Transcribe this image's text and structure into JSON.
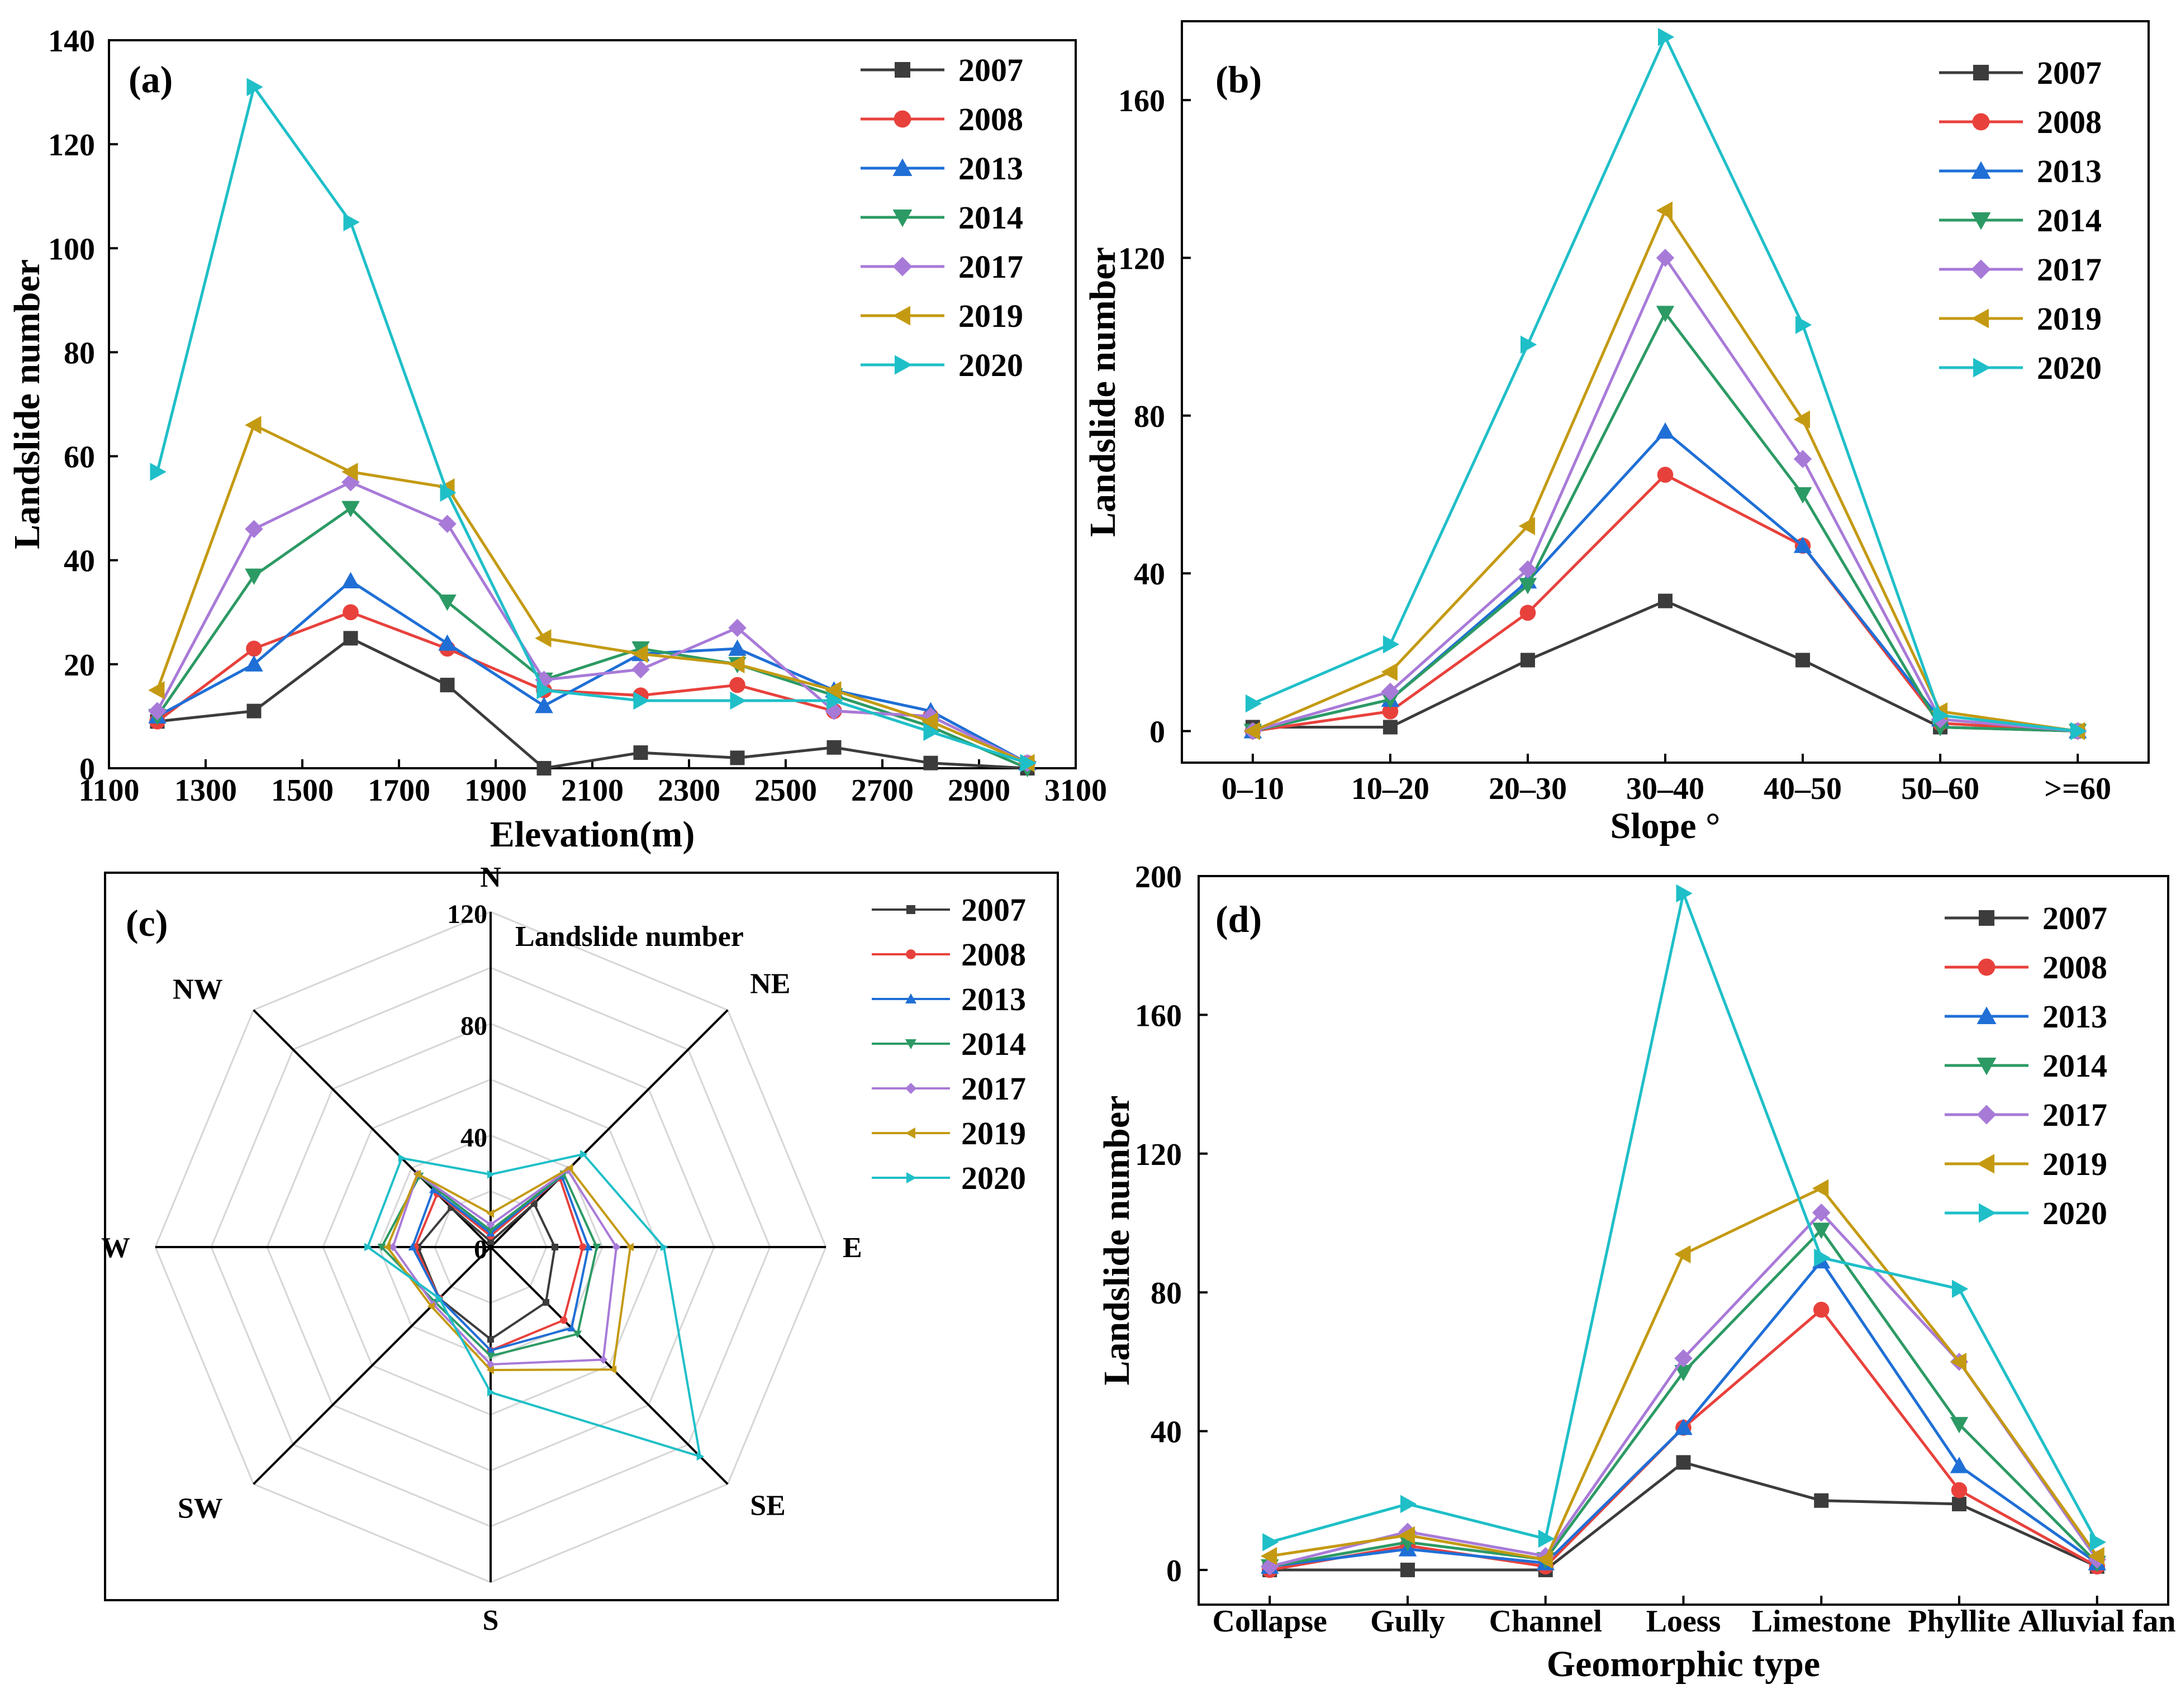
{
  "figure": {
    "series_colors": [
      "#3c3c3c",
      "#e8413c",
      "#1f6fd6",
      "#2c9a64",
      "#a87ad8",
      "#c49a12",
      "#1fbfc8"
    ],
    "series_markers": [
      "square",
      "circle",
      "triangle-up",
      "triangle-down",
      "diamond",
      "triangle-left",
      "triangle-right"
    ]
  },
  "chart_data": [
    {
      "panel_label": "(a)",
      "type": "line",
      "xlabel": "Elevation(m)",
      "ylabel": "Landslide number",
      "x": [
        1200,
        1400,
        1600,
        1800,
        2000,
        2200,
        2400,
        2600,
        2800,
        3000
      ],
      "xlim": [
        1100,
        3100
      ],
      "xticks": [
        1100,
        1300,
        1500,
        1700,
        1900,
        2100,
        2300,
        2500,
        2700,
        2900,
        3100
      ],
      "ylim": [
        0,
        140
      ],
      "yticks": [
        0,
        20,
        40,
        60,
        80,
        100,
        120,
        140
      ],
      "legend_position": "top-right",
      "series": [
        {
          "name": "2007",
          "values": [
            9,
            11,
            25,
            16,
            0,
            3,
            2,
            4,
            1,
            0
          ]
        },
        {
          "name": "2008",
          "values": [
            9,
            23,
            30,
            23,
            15,
            14,
            16,
            11,
            10,
            1
          ]
        },
        {
          "name": "2013",
          "values": [
            10,
            20,
            36,
            24,
            12,
            22,
            23,
            15,
            11,
            1
          ]
        },
        {
          "name": "2014",
          "values": [
            10,
            37,
            50,
            32,
            17,
            23,
            20,
            14,
            8,
            0
          ]
        },
        {
          "name": "2017",
          "values": [
            11,
            46,
            55,
            47,
            17,
            19,
            27,
            11,
            10,
            1
          ]
        },
        {
          "name": "2019",
          "values": [
            15,
            66,
            57,
            54,
            25,
            22,
            20,
            15,
            9,
            1
          ]
        },
        {
          "name": "2020",
          "values": [
            57,
            131,
            105,
            53,
            15,
            13,
            13,
            13,
            7,
            1
          ]
        }
      ]
    },
    {
      "panel_label": "(b)",
      "type": "line",
      "xlabel": "Slope °",
      "ylabel": "Landslide number",
      "categories": [
        "0–10",
        "10–20",
        "20–30",
        "30–40",
        "40–50",
        "50–60",
        ">=60"
      ],
      "ylim": [
        -8,
        180
      ],
      "yticks": [
        0,
        40,
        80,
        120,
        160
      ],
      "legend_position": "top-right",
      "series": [
        {
          "name": "2007",
          "values": [
            1,
            1,
            18,
            33,
            18,
            1,
            0
          ]
        },
        {
          "name": "2008",
          "values": [
            0,
            5,
            30,
            65,
            47,
            2,
            0
          ]
        },
        {
          "name": "2013",
          "values": [
            0,
            8,
            38,
            76,
            47,
            3,
            0
          ]
        },
        {
          "name": "2014",
          "values": [
            0,
            8,
            37,
            106,
            60,
            1,
            0
          ]
        },
        {
          "name": "2017",
          "values": [
            0,
            10,
            41,
            120,
            69,
            3,
            0
          ]
        },
        {
          "name": "2019",
          "values": [
            0,
            15,
            52,
            132,
            79,
            5,
            0
          ]
        },
        {
          "name": "2020",
          "values": [
            7,
            22,
            98,
            176,
            103,
            4,
            0
          ]
        }
      ]
    },
    {
      "panel_label": "(c)",
      "type": "radar",
      "title": "Landslide number",
      "directions": [
        "N",
        "NE",
        "E",
        "SE",
        "S",
        "SW",
        "W",
        "NW"
      ],
      "rlim": [
        0,
        120
      ],
      "rticks": [
        0,
        40,
        80,
        120
      ],
      "legend_position": "top-right",
      "series": [
        {
          "name": "2007",
          "values": [
            2,
            22,
            23,
            28,
            33,
            26,
            26,
            20
          ]
        },
        {
          "name": "2008",
          "values": [
            4,
            35,
            33,
            37,
            37,
            26,
            27,
            27
          ]
        },
        {
          "name": "2013",
          "values": [
            5,
            36,
            35,
            41,
            37,
            26,
            28,
            29
          ]
        },
        {
          "name": "2014",
          "values": [
            6,
            37,
            38,
            44,
            39,
            28,
            39,
            36
          ]
        },
        {
          "name": "2017",
          "values": [
            8,
            39,
            45,
            57,
            42,
            29,
            35,
            37
          ]
        },
        {
          "name": "2019",
          "values": [
            12,
            40,
            50,
            62,
            44,
            30,
            37,
            37
          ]
        },
        {
          "name": "2020",
          "values": [
            26,
            47,
            62,
            106,
            52,
            26,
            44,
            45
          ]
        }
      ]
    },
    {
      "panel_label": "(d)",
      "type": "line",
      "xlabel": "Geomorphic type",
      "ylabel": "Landslide number",
      "categories": [
        "Collapse",
        "Gully",
        "Channel",
        "Loess",
        "Limestone",
        "Phyllite",
        "Alluvial fan"
      ],
      "ylim": [
        -10,
        200
      ],
      "yticks": [
        0,
        40,
        80,
        120,
        160,
        200
      ],
      "legend_position": "top-right",
      "series": [
        {
          "name": "2007",
          "values": [
            0,
            0,
            0,
            31,
            20,
            19,
            1
          ]
        },
        {
          "name": "2008",
          "values": [
            0,
            7,
            1,
            41,
            75,
            23,
            1
          ]
        },
        {
          "name": "2013",
          "values": [
            1,
            6,
            2,
            41,
            89,
            30,
            2
          ]
        },
        {
          "name": "2014",
          "values": [
            1,
            8,
            3,
            57,
            98,
            42,
            2
          ]
        },
        {
          "name": "2017",
          "values": [
            1,
            11,
            4,
            61,
            103,
            60,
            3
          ]
        },
        {
          "name": "2019",
          "values": [
            4,
            10,
            3,
            91,
            110,
            60,
            4
          ]
        },
        {
          "name": "2020",
          "values": [
            8,
            19,
            9,
            195,
            90,
            81,
            8
          ]
        }
      ]
    }
  ]
}
